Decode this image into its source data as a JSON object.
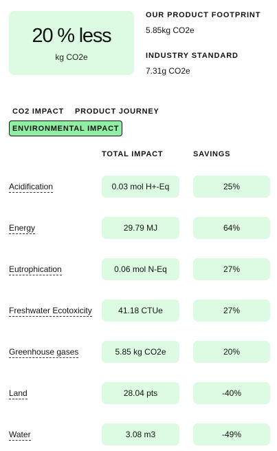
{
  "summary": {
    "headline": "20 % less",
    "unit": "kg CO2e"
  },
  "footprint": {
    "product_label": "OUR PRODUCT FOOTPRINT",
    "product_value": "5.85kg CO2e",
    "industry_label": "INDUSTRY STANDARD",
    "industry_value": "7.31g CO2e"
  },
  "tabs": [
    {
      "label": "CO2 IMPACT",
      "active": false
    },
    {
      "label": "PRODUCT JOURNEY",
      "active": false
    },
    {
      "label": "ENVIRONMENTAL IMPACT",
      "active": true
    }
  ],
  "table": {
    "headers": {
      "total": "TOTAL IMPACT",
      "savings": "SAVINGS"
    },
    "rows": [
      {
        "label": "Acidification",
        "total": "0.03 mol H+-Eq",
        "savings": "25%"
      },
      {
        "label": "Energy",
        "total": "29.79 MJ",
        "savings": "64%"
      },
      {
        "label": "Eutrophication",
        "total": "0.06 mol N-Eq",
        "savings": "27%"
      },
      {
        "label": "Freshwater Ecotoxicity",
        "total": "41.18 CTUe",
        "savings": "27%"
      },
      {
        "label": "Greenhouse gases",
        "total": "5.85 kg CO2e",
        "savings": "20%"
      },
      {
        "label": "Land",
        "total": "28.04 pts",
        "savings": "-40%"
      },
      {
        "label": "Water",
        "total": "3.08 m3",
        "savings": "-49%"
      }
    ]
  },
  "colors": {
    "card_bg": "#dcfbe2",
    "active_tab_bg": "#8ff0a4",
    "text": "#111111"
  }
}
